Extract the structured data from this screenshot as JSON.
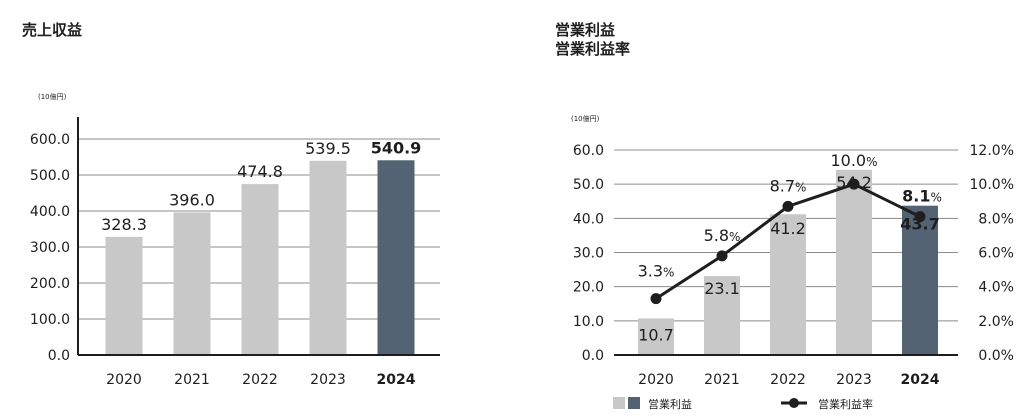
{
  "titles": {
    "left": "売上収益",
    "right_line1": "営業利益",
    "right_line2": "営業利益率"
  },
  "colors": {
    "bar": "#c8c8c8",
    "bar_highlight": "#536373",
    "line": "#1e1e1e",
    "axis": "#1e1e1e",
    "grid": "#8c8c8c"
  },
  "chart_data": [
    {
      "type": "bar",
      "title": "売上収益",
      "unit": "(10億円)",
      "categories": [
        "2020",
        "2021",
        "2022",
        "2023",
        "2024"
      ],
      "values": [
        328.3,
        396.0,
        474.8,
        539.5,
        540.9
      ],
      "value_labels": [
        "328.3",
        "396.0",
        "474.8",
        "539.5",
        "540.9"
      ],
      "highlight_index": 4,
      "ylim": [
        0,
        600
      ],
      "yticks": [
        "0.0",
        "100.0",
        "200.0",
        "300.0",
        "400.0",
        "500.0",
        "600.0"
      ],
      "grid": true
    },
    {
      "type": "bar+line",
      "title": "営業利益 営業利益率",
      "unit": "(10億円)",
      "categories": [
        "2020",
        "2021",
        "2022",
        "2023",
        "2024"
      ],
      "series": [
        {
          "name": "営業利益",
          "type": "bar",
          "values": [
            10.7,
            23.1,
            41.2,
            54.2,
            43.7
          ],
          "value_labels": [
            "10.7",
            "23.1",
            "41.2",
            "54.2",
            "43.7"
          ],
          "highlight_index": 4
        },
        {
          "name": "営業利益率",
          "type": "line",
          "values": [
            3.3,
            5.8,
            8.7,
            10.0,
            8.1
          ],
          "value_labels": [
            "3.3",
            "5.8",
            "8.7",
            "10.0",
            "8.1"
          ],
          "percent_suffix": "%"
        }
      ],
      "ylim_left": [
        0,
        60
      ],
      "yticks_left": [
        "0.0",
        "10.0",
        "20.0",
        "30.0",
        "40.0",
        "50.0",
        "60.0"
      ],
      "ylim_right": [
        0,
        12
      ],
      "yticks_right": [
        "0.0%",
        "2.0%",
        "4.0%",
        "6.0%",
        "8.0%",
        "10.0%",
        "12.0%"
      ],
      "legend": [
        "営業利益",
        "営業利益率"
      ],
      "legend_position": "bottom",
      "grid": true
    }
  ]
}
